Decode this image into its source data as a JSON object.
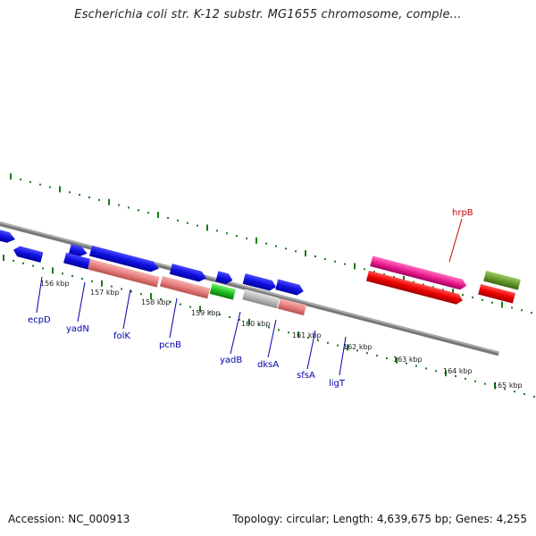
{
  "title": "Escherichia coli str. K-12 substr. MG1655 chromosome, comple...",
  "footer": {
    "accession": "Accession: NC_000913",
    "topology": "Topology: circular; Length: 4,639,675 bp; Genes: 4,255"
  },
  "colors": {
    "blue_gene": "#1010e0",
    "salmon_gene": "#e88080",
    "green_gene": "#20c020",
    "lime_gene": "#b0f040",
    "grey_gene": "#bbbbbb",
    "red_gene": "#ee0000",
    "magenta_gene": "#ee2090",
    "olive_gene": "#6a9a30",
    "tick_green": "#1a7a1a",
    "label_blue": "#0000aa",
    "label_red": "#cc0000"
  },
  "scale_labels": [
    "156 kbp",
    "157 kbp",
    "158 kbp",
    "159 kbp",
    "160 kbp",
    "161 kbp",
    "162 kbp",
    "163 kbp",
    "164 kbp",
    "165 kbp"
  ],
  "gene_labels": [
    {
      "name": "ecpD",
      "color": "blue"
    },
    {
      "name": "yadN",
      "color": "blue"
    },
    {
      "name": "folK",
      "color": "blue"
    },
    {
      "name": "pcnB",
      "color": "blue"
    },
    {
      "name": "yadB",
      "color": "blue"
    },
    {
      "name": "dksA",
      "color": "blue"
    },
    {
      "name": "sfsA",
      "color": "blue"
    },
    {
      "name": "ligT",
      "color": "blue"
    },
    {
      "name": "hrpB",
      "color": "red"
    }
  ]
}
